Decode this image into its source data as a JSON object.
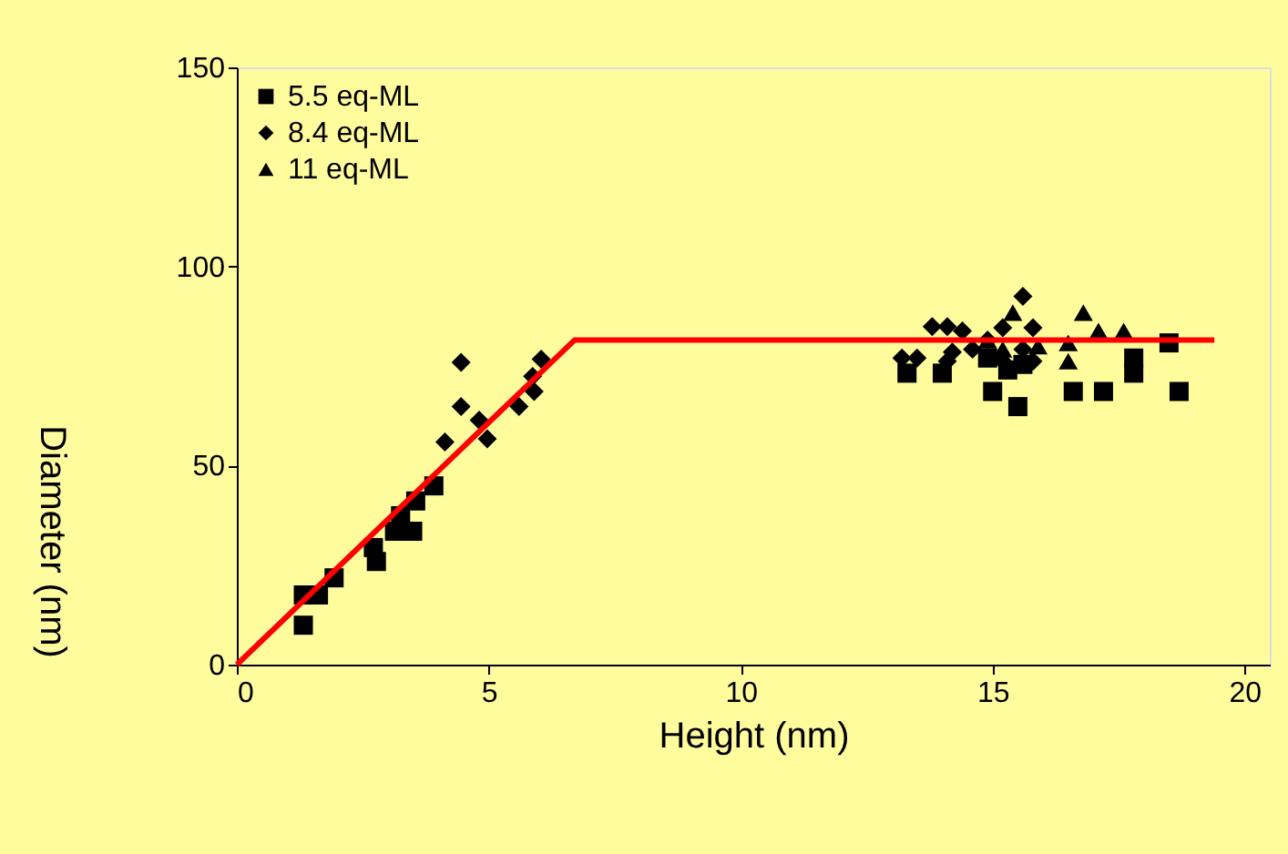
{
  "chart_data": {
    "type": "scatter",
    "xlabel": "Height (nm)",
    "ylabel": "Diameter (nm)",
    "xlim": [
      0,
      20.5
    ],
    "xticks": [
      0,
      5,
      10,
      15,
      20
    ],
    "ylim": [
      0,
      150
    ],
    "yticks": [
      0,
      50,
      100,
      150
    ],
    "grid": false,
    "legend": "top left",
    "series": [
      {
        "name": "5.5 eq-ML",
        "color": "#000000",
        "marker": "square",
        "x": [
          1.32,
          1.32,
          1.62,
          1.93,
          2.77,
          2.71,
          3.13,
          3.49,
          3.25,
          3.55,
          3.91,
          13.3,
          14.0,
          15.0,
          15.5,
          16.6,
          17.2,
          17.8,
          17.8,
          18.5,
          18.7,
          14.9,
          15.3,
          15.6
        ],
        "values": [
          9.9,
          17.5,
          17.5,
          21.8,
          25.9,
          29.4,
          33.5,
          33.5,
          37.4,
          41.1,
          44.9,
          73.2,
          73.2,
          68.6,
          64.8,
          68.6,
          68.6,
          73.2,
          77,
          80.8,
          68.6,
          77,
          74,
          75.4
        ]
      },
      {
        "name": "8.4 eq-ML",
        "color": "#000000",
        "marker": "diamond",
        "x": [
          4.45,
          4.45,
          4.13,
          4.81,
          4.97,
          5.6,
          5.9,
          5.87,
          6.04,
          13.2,
          13.5,
          13.8,
          14.1,
          14.4,
          14.2,
          14.6,
          14.9,
          15.2,
          15.6,
          15.8,
          15.6,
          15.8,
          14.1,
          15.2
        ],
        "values": [
          75.9,
          64.8,
          55.9,
          61.4,
          56.7,
          64.8,
          68.6,
          72.4,
          76.7,
          77,
          77,
          84.9,
          84.9,
          83.8,
          78.5,
          79.2,
          81.5,
          84.6,
          92.5,
          84.6,
          79.2,
          76.2,
          76.2,
          76.2
        ]
      },
      {
        "name": "11 eq-ML",
        "color": "#000000",
        "marker": "triangle",
        "x": [
          15.4,
          15.9,
          16.5,
          16.5,
          16.8,
          17.1,
          17.6,
          14.9,
          15.2
        ],
        "values": [
          88.4,
          80,
          80.8,
          76.2,
          88.4,
          83.8,
          83.8,
          81.5,
          79.2
        ]
      },
      {
        "type": "line",
        "color": "#ff0000",
        "marker": "none",
        "line_style": "solid",
        "x": [
          0,
          6.7,
          19.4
        ],
        "values": [
          0,
          81.5,
          81.5
        ]
      }
    ]
  }
}
